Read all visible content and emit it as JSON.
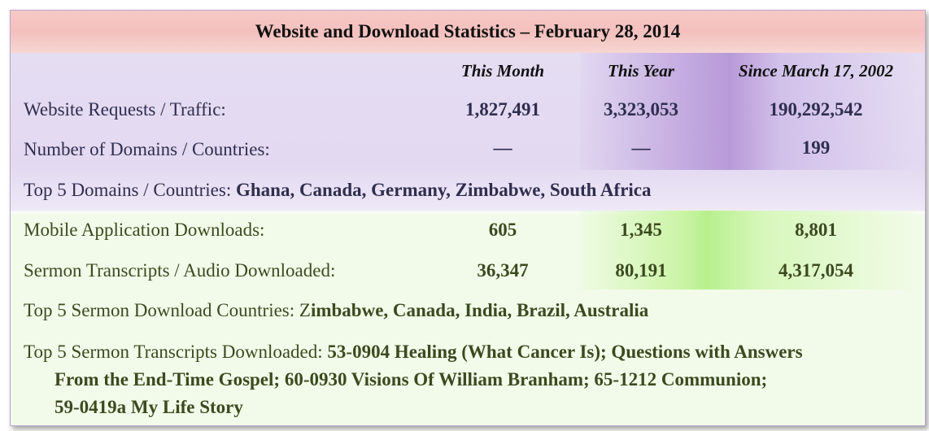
{
  "title": "Website and Download Statistics – February 28, 2014",
  "columns": [
    "This Month",
    "This Year",
    "Since March 17, 2002"
  ],
  "rows": [
    {
      "label": "Website Requests / Traffic:",
      "values": [
        "1,827,491",
        "3,323,053",
        "190,292,542"
      ]
    },
    {
      "label": "Number of Domains / Countries:",
      "values": [
        "—",
        "—",
        "199"
      ]
    }
  ],
  "top_domains": {
    "label": "Top 5 Domains / Countries: ",
    "value": "Ghana, Canada, Germany, Zimbabwe, South Africa"
  },
  "download_rows": [
    {
      "label": "Mobile Application Downloads:",
      "values": [
        "605",
        "1,345",
        "8,801"
      ]
    },
    {
      "label": "Sermon Transcripts / Audio Downloaded:",
      "values": [
        "36,347",
        "80,191",
        "4,317,054"
      ]
    }
  ],
  "top_countries": {
    "label": "Top 5 Sermon Download Countries: Z",
    "value": "imbabwe, Canada, India, Brazil, Australia"
  },
  "top_transcripts": {
    "label": "Top 5 Sermon Transcripts Downloaded: ",
    "line1": "53-0904 Healing (What Cancer Is); Questions with Answers",
    "line2": "From the End-Time Gospel; 60-0930 Visions Of William  Branham; 65-1212 Communion;",
    "line3": "59-0419a My Life Story"
  },
  "colors": {
    "title_band": "#f4c0bd",
    "purple_band": "#e3d9f1",
    "green_band": "#f2fbe9",
    "purple_highlight": "#b89ad8",
    "green_highlight": "#b8f08e"
  }
}
